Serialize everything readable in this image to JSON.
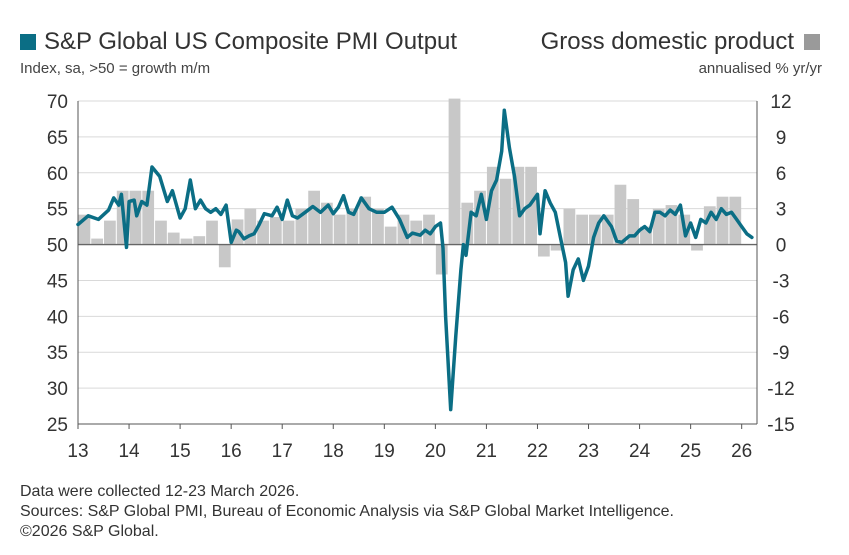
{
  "legend": {
    "pmi_label": "S&P Global US Composite PMI Output",
    "gdp_label": "Gross domestic product",
    "left_subtitle": "Index, sa, >50 = growth m/m",
    "right_subtitle": "annualised % yr/yr"
  },
  "footer": {
    "line1": "Data were collected 12-23 March 2026.",
    "line2": "Sources: S&P Global PMI, Bureau of Economic Analysis via S&P Global Market Intelligence.",
    "line3": "©2026 S&P Global."
  },
  "colors": {
    "pmi_line": "#0b6e85",
    "gdp_bars": "#c8c8c8",
    "legend_gdp_swatch": "#9a9a9a",
    "zero_line": "#666666",
    "grid": "#d9d9d9"
  },
  "chart_data": {
    "type": "line",
    "left_axis": {
      "ylim": [
        25,
        70
      ],
      "ticks": [
        "70",
        "65",
        "60",
        "55",
        "50",
        "45",
        "40",
        "35",
        "30",
        "25"
      ]
    },
    "right_axis": {
      "ylim": [
        -15,
        12
      ],
      "ticks": [
        "12",
        "9",
        "6",
        "3",
        "0",
        "-3",
        "-6",
        "-9",
        "-12",
        "-15"
      ]
    },
    "x_ticks": [
      "13",
      "14",
      "15",
      "16",
      "17",
      "18",
      "19",
      "20",
      "21",
      "22",
      "23",
      "24",
      "25",
      "26"
    ],
    "grid": true,
    "pmi": {
      "name": "S&P Global US Composite PMI Output",
      "x": [
        2013.0,
        2013.2,
        2013.4,
        2013.6,
        2013.7,
        2013.8,
        2013.85,
        2013.95,
        2014.0,
        2014.1,
        2014.15,
        2014.25,
        2014.35,
        2014.45,
        2014.6,
        2014.75,
        2014.85,
        2015.0,
        2015.1,
        2015.2,
        2015.3,
        2015.4,
        2015.5,
        2015.6,
        2015.7,
        2015.8,
        2015.9,
        2016.0,
        2016.1,
        2016.15,
        2016.25,
        2016.35,
        2016.45,
        2016.55,
        2016.65,
        2016.8,
        2016.9,
        2017.0,
        2017.1,
        2017.2,
        2017.3,
        2017.45,
        2017.6,
        2017.75,
        2017.9,
        2018.0,
        2018.1,
        2018.2,
        2018.3,
        2018.4,
        2018.55,
        2018.7,
        2018.85,
        2019.0,
        2019.15,
        2019.3,
        2019.45,
        2019.55,
        2019.7,
        2019.8,
        2019.9,
        2020.0,
        2020.1,
        2020.15,
        2020.2,
        2020.3,
        2020.4,
        2020.5,
        2020.55,
        2020.6,
        2020.7,
        2020.8,
        2020.9,
        2021.0,
        2021.1,
        2021.2,
        2021.3,
        2021.35,
        2021.45,
        2021.55,
        2021.65,
        2021.75,
        2021.85,
        2022.0,
        2022.05,
        2022.15,
        2022.25,
        2022.35,
        2022.45,
        2022.55,
        2022.6,
        2022.7,
        2022.8,
        2022.9,
        2023.0,
        2023.1,
        2023.2,
        2023.3,
        2023.45,
        2023.55,
        2023.65,
        2023.8,
        2023.9,
        2024.0,
        2024.1,
        2024.2,
        2024.3,
        2024.4,
        2024.5,
        2024.6,
        2024.7,
        2024.8,
        2024.9,
        2025.0,
        2025.1,
        2025.2,
        2025.3,
        2025.4,
        2025.5,
        2025.6,
        2025.7,
        2025.8,
        2025.9,
        2026.0,
        2026.1,
        2026.2
      ],
      "values": [
        52.8,
        54.0,
        53.5,
        54.8,
        56.5,
        55.5,
        57.0,
        49.6,
        56.0,
        56.2,
        54.0,
        56.0,
        55.5,
        60.8,
        59.5,
        56.0,
        57.5,
        53.7,
        55.0,
        59.0,
        55.0,
        56.2,
        55.0,
        54.5,
        55.0,
        54.2,
        55.5,
        50.3,
        52.0,
        51.8,
        50.8,
        51.2,
        51.5,
        52.8,
        54.3,
        54.0,
        55.2,
        53.5,
        56.2,
        54.0,
        53.7,
        54.5,
        55.3,
        54.5,
        55.5,
        54.3,
        55.2,
        56.8,
        54.5,
        54.2,
        56.5,
        55.0,
        54.5,
        54.5,
        55.2,
        53.5,
        51.0,
        51.6,
        51.3,
        52.0,
        51.5,
        52.5,
        53.0,
        49.5,
        40.0,
        27.0,
        37.3,
        46.5,
        50.0,
        48.5,
        54.5,
        54.0,
        57.0,
        53.5,
        57.5,
        59.0,
        63.0,
        68.7,
        63.5,
        59.5,
        54.0,
        55.0,
        55.5,
        57.0,
        51.5,
        57.5,
        55.8,
        54.5,
        51.0,
        47.5,
        42.8,
        46.5,
        48.0,
        45.0,
        47.0,
        51.0,
        53.0,
        54.0,
        52.5,
        50.5,
        50.3,
        51.2,
        51.2,
        52.0,
        52.5,
        51.8,
        54.5,
        54.5,
        54.0,
        54.8,
        54.2,
        55.5,
        51.2,
        53.0,
        51.0,
        53.5,
        53.0,
        54.5,
        53.5,
        55.0,
        54.2,
        54.5,
        53.5,
        52.5,
        51.5,
        51.0
      ]
    },
    "gdp": {
      "name": "Gross domestic product",
      "x": [
        2013.125,
        2013.375,
        2013.625,
        2013.875,
        2014.125,
        2014.375,
        2014.625,
        2014.875,
        2015.125,
        2015.375,
        2015.625,
        2015.875,
        2016.125,
        2016.375,
        2016.625,
        2016.875,
        2017.125,
        2017.375,
        2017.625,
        2017.875,
        2018.125,
        2018.375,
        2018.625,
        2018.875,
        2019.125,
        2019.375,
        2019.625,
        2019.875,
        2020.125,
        2020.375,
        2020.625,
        2020.875,
        2021.125,
        2021.375,
        2021.625,
        2021.875,
        2022.125,
        2022.375,
        2022.625,
        2022.875,
        2023.125,
        2023.375,
        2023.625,
        2023.875,
        2024.125,
        2024.375,
        2024.625,
        2024.875,
        2025.125,
        2025.375,
        2025.625,
        2025.875
      ],
      "values": [
        2.5,
        0.5,
        2.0,
        4.5,
        4.5,
        4.5,
        2.0,
        1.0,
        0.5,
        0.7,
        2.0,
        -1.9,
        2.1,
        3.0,
        2.0,
        2.3,
        2.0,
        3.0,
        4.5,
        3.5,
        2.5,
        3.0,
        4.0,
        3.0,
        1.5,
        2.5,
        2.0,
        2.5,
        -2.5,
        12.2,
        3.5,
        4.5,
        6.5,
        5.5,
        6.5,
        6.5,
        -1.0,
        -0.5,
        3.0,
        2.5,
        2.5,
        2.5,
        5.0,
        3.8,
        1.5,
        3.0,
        3.3,
        2.5,
        -0.5,
        3.2,
        4.0,
        4.0
      ]
    }
  }
}
